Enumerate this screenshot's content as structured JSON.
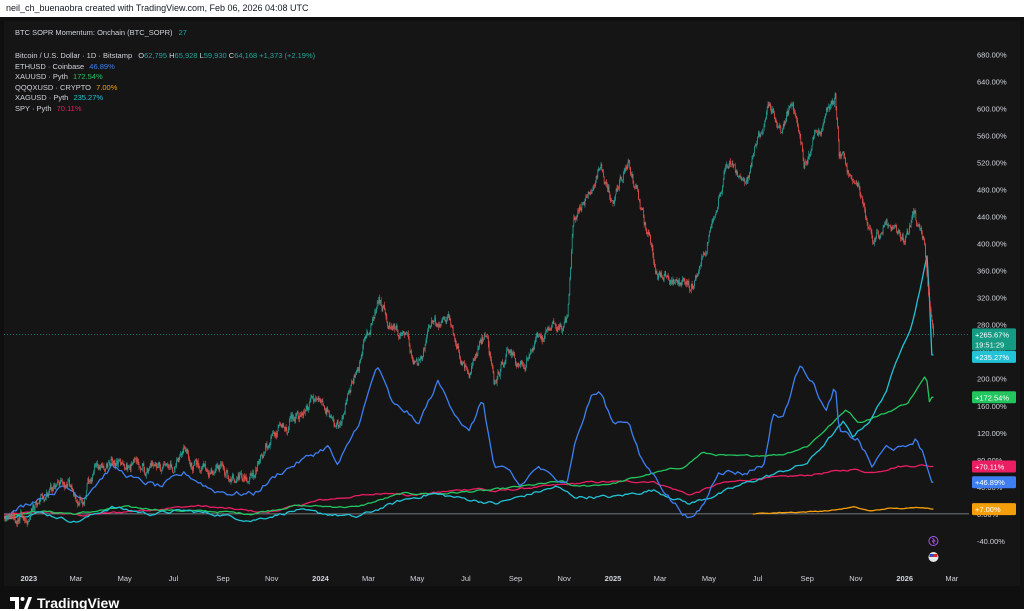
{
  "caption": "neil_ch_buenaobra created with TradingView.com, Feb 06, 2026 04:08 UTC",
  "indicator": {
    "name": "BTC SOPR Momentum: Onchain (BTC_SOPR)",
    "value": "27"
  },
  "main_symbol": {
    "name": "Bitcoin / U.S. Dollar · 1D · Bitstamp",
    "open_label": "O",
    "open": "62,795",
    "high_label": "H",
    "high": "65,928",
    "low_label": "L",
    "low": "59,930",
    "close_label": "C",
    "close": "64,168",
    "change": "+1,373 (+2.19%)"
  },
  "legend": [
    {
      "label": "ETHUSD · Coinbase",
      "value": "46.89%",
      "color": "#3d7ff2"
    },
    {
      "label": "XAUUSD · Pyth",
      "value": "172.54%",
      "color": "#22c55e"
    },
    {
      "label": "QQQXUSD · CRYPTO",
      "value": "7.00%",
      "color": "#f59e0b"
    },
    {
      "label": "XAGUSD · Pyth",
      "value": "235.27%",
      "color": "#22c3d6"
    },
    {
      "label": "SPY · Pyth",
      "value": "70.11%",
      "color": "#e91e63"
    }
  ],
  "brand": "TradingView",
  "chart_data": {
    "type": "line",
    "y_unit": "percent change",
    "ylim": [
      -55,
      700
    ],
    "y_ticks": [
      -40,
      0,
      40,
      80,
      120,
      160,
      200,
      240,
      280,
      320,
      360,
      400,
      440,
      480,
      520,
      560,
      600,
      640,
      680
    ],
    "y_tick_labels": [
      "-40.00%",
      "0.00%",
      "40.00%",
      "80.00%",
      "120.00%",
      "160.00%",
      "200.00%",
      "240.00%",
      "280.00%",
      "320.00%",
      "360.00%",
      "400.00%",
      "440.00%",
      "480.00%",
      "520.00%",
      "560.00%",
      "600.00%",
      "640.00%",
      "680.00%"
    ],
    "x_range": [
      "2022-12-01",
      "2026-03-20"
    ],
    "x_ticks": [
      {
        "date": "2023-01-01",
        "label": "2023",
        "bold": true
      },
      {
        "date": "2023-03-01",
        "label": "Mar"
      },
      {
        "date": "2023-05-01",
        "label": "May"
      },
      {
        "date": "2023-07-01",
        "label": "Jul"
      },
      {
        "date": "2023-09-01",
        "label": "Sep"
      },
      {
        "date": "2023-11-01",
        "label": "Nov"
      },
      {
        "date": "2024-01-01",
        "label": "2024",
        "bold": true
      },
      {
        "date": "2024-03-01",
        "label": "Mar"
      },
      {
        "date": "2024-05-01",
        "label": "May"
      },
      {
        "date": "2024-07-01",
        "label": "Jul"
      },
      {
        "date": "2024-09-01",
        "label": "Sep"
      },
      {
        "date": "2024-11-01",
        "label": "Nov"
      },
      {
        "date": "2025-01-01",
        "label": "2025",
        "bold": true
      },
      {
        "date": "2025-03-01",
        "label": "Mar"
      },
      {
        "date": "2025-05-01",
        "label": "May"
      },
      {
        "date": "2025-07-01",
        "label": "Jul"
      },
      {
        "date": "2025-09-01",
        "label": "Sep"
      },
      {
        "date": "2025-11-01",
        "label": "Nov"
      },
      {
        "date": "2026-01-01",
        "label": "2026",
        "bold": true
      },
      {
        "date": "2026-03-01",
        "label": "Mar"
      }
    ],
    "series": [
      {
        "name": "Bitcoin / U.S. Dollar",
        "style": "candles",
        "up_color": "#26a69a",
        "down_color": "#ef5350",
        "points": [
          [
            "2022-12-01",
            -4
          ],
          [
            "2022-12-25",
            -2
          ],
          [
            "2023-01-10",
            10
          ],
          [
            "2023-01-25",
            38
          ],
          [
            "2023-02-15",
            40
          ],
          [
            "2023-03-10",
            26
          ],
          [
            "2023-03-25",
            70
          ],
          [
            "2023-04-15",
            80
          ],
          [
            "2023-05-10",
            68
          ],
          [
            "2023-06-15",
            58
          ],
          [
            "2023-06-25",
            80
          ],
          [
            "2023-07-15",
            82
          ],
          [
            "2023-08-20",
            55
          ],
          [
            "2023-09-15",
            60
          ],
          [
            "2023-10-10",
            62
          ],
          [
            "2023-10-25",
            105
          ],
          [
            "2023-11-15",
            125
          ],
          [
            "2023-12-10",
            160
          ],
          [
            "2024-01-10",
            165
          ],
          [
            "2024-01-25",
            125
          ],
          [
            "2024-02-15",
            215
          ],
          [
            "2024-03-14",
            318
          ],
          [
            "2024-04-01",
            280
          ],
          [
            "2024-04-15",
            255
          ],
          [
            "2024-05-01",
            215
          ],
          [
            "2024-05-20",
            285
          ],
          [
            "2024-06-10",
            275
          ],
          [
            "2024-07-05",
            200
          ],
          [
            "2024-07-28",
            270
          ],
          [
            "2024-08-05",
            195
          ],
          [
            "2024-08-25",
            245
          ],
          [
            "2024-09-07",
            210
          ],
          [
            "2024-09-28",
            260
          ],
          [
            "2024-10-15",
            265
          ],
          [
            "2024-11-05",
            280
          ],
          [
            "2024-11-13",
            440
          ],
          [
            "2024-12-05",
            490
          ],
          [
            "2024-12-17",
            515
          ],
          [
            "2025-01-01",
            460
          ],
          [
            "2025-01-20",
            520
          ],
          [
            "2025-02-05",
            450
          ],
          [
            "2025-02-26",
            355
          ],
          [
            "2025-03-15",
            345
          ],
          [
            "2025-04-08",
            330
          ],
          [
            "2025-04-25",
            390
          ],
          [
            "2025-05-22",
            520
          ],
          [
            "2025-06-15",
            495
          ],
          [
            "2025-07-14",
            600
          ],
          [
            "2025-08-01",
            560
          ],
          [
            "2025-08-14",
            610
          ],
          [
            "2025-08-28",
            520
          ],
          [
            "2025-09-15",
            560
          ],
          [
            "2025-10-06",
            615
          ],
          [
            "2025-10-11",
            530
          ],
          [
            "2025-11-05",
            480
          ],
          [
            "2025-11-21",
            395
          ],
          [
            "2025-12-10",
            425
          ],
          [
            "2025-12-31",
            400
          ],
          [
            "2026-01-14",
            445
          ],
          [
            "2026-01-25",
            400
          ],
          [
            "2026-02-01",
            320
          ],
          [
            "2026-02-06",
            265.67
          ]
        ]
      },
      {
        "name": "ETHUSD",
        "color": "#3d7ff2",
        "points": [
          [
            "2022-12-01",
            -4
          ],
          [
            "2023-01-15",
            25
          ],
          [
            "2023-02-15",
            40
          ],
          [
            "2023-03-10",
            25
          ],
          [
            "2023-04-15",
            70
          ],
          [
            "2023-05-15",
            50
          ],
          [
            "2023-06-15",
            40
          ],
          [
            "2023-07-15",
            60
          ],
          [
            "2023-08-20",
            35
          ],
          [
            "2023-09-15",
            30
          ],
          [
            "2023-10-10",
            30
          ],
          [
            "2023-11-10",
            60
          ],
          [
            "2023-12-10",
            80
          ],
          [
            "2024-01-10",
            100
          ],
          [
            "2024-01-23",
            70
          ],
          [
            "2024-02-20",
            140
          ],
          [
            "2024-03-12",
            220
          ],
          [
            "2024-04-01",
            160
          ],
          [
            "2024-04-20",
            150
          ],
          [
            "2024-05-01",
            130
          ],
          [
            "2024-05-27",
            195
          ],
          [
            "2024-06-15",
            155
          ],
          [
            "2024-07-05",
            120
          ],
          [
            "2024-07-22",
            170
          ],
          [
            "2024-08-05",
            70
          ],
          [
            "2024-08-25",
            60
          ],
          [
            "2024-09-07",
            40
          ],
          [
            "2024-09-28",
            70
          ],
          [
            "2024-10-15",
            55
          ],
          [
            "2024-11-05",
            50
          ],
          [
            "2024-11-13",
            100
          ],
          [
            "2024-12-05",
            175
          ],
          [
            "2024-12-16",
            180
          ],
          [
            "2025-01-01",
            135
          ],
          [
            "2025-01-20",
            140
          ],
          [
            "2025-02-05",
            80
          ],
          [
            "2025-02-26",
            50
          ],
          [
            "2025-03-15",
            20
          ],
          [
            "2025-04-09",
            -10
          ],
          [
            "2025-04-25",
            15
          ],
          [
            "2025-05-13",
            65
          ],
          [
            "2025-06-15",
            60
          ],
          [
            "2025-07-10",
            75
          ],
          [
            "2025-07-20",
            150
          ],
          [
            "2025-08-01",
            140
          ],
          [
            "2025-08-24",
            225
          ],
          [
            "2025-09-10",
            190
          ],
          [
            "2025-09-25",
            150
          ],
          [
            "2025-10-06",
            190
          ],
          [
            "2025-10-11",
            120
          ],
          [
            "2025-11-04",
            110
          ],
          [
            "2025-11-21",
            70
          ],
          [
            "2025-12-10",
            100
          ],
          [
            "2025-12-31",
            95
          ],
          [
            "2026-01-14",
            110
          ],
          [
            "2026-01-25",
            90
          ],
          [
            "2026-02-01",
            55
          ],
          [
            "2026-02-06",
            46.89
          ]
        ]
      },
      {
        "name": "XAUUSD",
        "color": "#22c55e",
        "points": [
          [
            "2022-12-01",
            -3
          ],
          [
            "2023-01-15",
            4
          ],
          [
            "2023-03-01",
            0
          ],
          [
            "2023-05-01",
            10
          ],
          [
            "2023-07-01",
            5
          ],
          [
            "2023-09-01",
            3
          ],
          [
            "2023-10-06",
            0
          ],
          [
            "2023-12-01",
            12
          ],
          [
            "2024-02-15",
            10
          ],
          [
            "2024-04-12",
            30
          ],
          [
            "2024-06-01",
            30
          ],
          [
            "2024-08-01",
            35
          ],
          [
            "2024-10-30",
            48
          ],
          [
            "2024-11-15",
            40
          ],
          [
            "2025-01-01",
            45
          ],
          [
            "2025-02-20",
            60
          ],
          [
            "2025-04-01",
            70
          ],
          [
            "2025-04-22",
            90
          ],
          [
            "2025-06-01",
            85
          ],
          [
            "2025-08-01",
            88
          ],
          [
            "2025-09-01",
            100
          ],
          [
            "2025-10-08",
            140
          ],
          [
            "2025-10-20",
            155
          ],
          [
            "2025-11-05",
            135
          ],
          [
            "2025-12-10",
            150
          ],
          [
            "2026-01-05",
            165
          ],
          [
            "2026-01-28",
            205
          ],
          [
            "2026-02-01",
            165
          ],
          [
            "2026-02-06",
            172.54
          ]
        ]
      },
      {
        "name": "QQQXUSD",
        "color": "#f59e0b",
        "points": [
          [
            "2025-06-25",
            0
          ],
          [
            "2025-08-01",
            2
          ],
          [
            "2025-09-01",
            3
          ],
          [
            "2025-10-01",
            5
          ],
          [
            "2025-10-29",
            10
          ],
          [
            "2025-11-20",
            4
          ],
          [
            "2025-12-10",
            8
          ],
          [
            "2026-01-05",
            8
          ],
          [
            "2026-01-25",
            10
          ],
          [
            "2026-02-06",
            7.0
          ]
        ]
      },
      {
        "name": "XAGUSD",
        "color": "#22c3d6",
        "points": [
          [
            "2022-12-01",
            -5
          ],
          [
            "2023-01-15",
            2
          ],
          [
            "2023-03-01",
            -12
          ],
          [
            "2023-04-15",
            10
          ],
          [
            "2023-06-01",
            0
          ],
          [
            "2023-07-15",
            5
          ],
          [
            "2023-09-01",
            -2
          ],
          [
            "2023-10-06",
            -10
          ],
          [
            "2023-12-01",
            5
          ],
          [
            "2024-02-15",
            -5
          ],
          [
            "2024-04-12",
            20
          ],
          [
            "2024-05-20",
            30
          ],
          [
            "2024-07-01",
            22
          ],
          [
            "2024-08-07",
            15
          ],
          [
            "2024-10-22",
            40
          ],
          [
            "2024-11-15",
            25
          ],
          [
            "2025-01-01",
            25
          ],
          [
            "2025-02-20",
            35
          ],
          [
            "2025-04-07",
            15
          ],
          [
            "2025-05-15",
            30
          ],
          [
            "2025-06-15",
            45
          ],
          [
            "2025-07-25",
            60
          ],
          [
            "2025-09-01",
            75
          ],
          [
            "2025-10-16",
            135
          ],
          [
            "2025-10-28",
            115
          ],
          [
            "2025-11-20",
            140
          ],
          [
            "2025-12-10",
            185
          ],
          [
            "2025-12-29",
            250
          ],
          [
            "2026-01-10",
            280
          ],
          [
            "2026-01-29",
            380
          ],
          [
            "2026-02-02",
            300
          ],
          [
            "2026-02-06",
            235.27
          ]
        ]
      },
      {
        "name": "SPY",
        "color": "#e91e63",
        "points": [
          [
            "2022-12-01",
            -2
          ],
          [
            "2023-01-15",
            3
          ],
          [
            "2023-03-10",
            -2
          ],
          [
            "2023-05-01",
            3
          ],
          [
            "2023-07-31",
            12
          ],
          [
            "2023-10-27",
            2
          ],
          [
            "2023-12-31",
            20
          ],
          [
            "2024-03-31",
            32
          ],
          [
            "2024-04-19",
            27
          ],
          [
            "2024-07-16",
            38
          ],
          [
            "2024-08-05",
            33
          ],
          [
            "2024-10-01",
            40
          ],
          [
            "2024-12-06",
            47
          ],
          [
            "2025-02-19",
            48
          ],
          [
            "2025-04-08",
            28
          ],
          [
            "2025-05-15",
            45
          ],
          [
            "2025-06-30",
            52
          ],
          [
            "2025-08-30",
            57
          ],
          [
            "2025-10-28",
            66
          ],
          [
            "2025-11-20",
            61
          ],
          [
            "2025-12-24",
            70
          ],
          [
            "2026-01-25",
            72
          ],
          [
            "2026-02-06",
            70.11
          ]
        ]
      }
    ],
    "price_tags": [
      {
        "value": 265.67,
        "lines": [
          "+265.67%",
          "19:51:29"
        ],
        "bg": "#159a83"
      },
      {
        "value": 235.27,
        "lines": [
          "+235.27%"
        ],
        "bg": "#22c3d6"
      },
      {
        "value": 172.54,
        "lines": [
          "+172.54%"
        ],
        "bg": "#22c55e"
      },
      {
        "value": 70.11,
        "lines": [
          "+70.11%"
        ],
        "bg": "#e91e63"
      },
      {
        "value": 46.89,
        "lines": [
          "+46.89%"
        ],
        "bg": "#3d7ff2"
      },
      {
        "value": 7.0,
        "lines": [
          "+7.00%"
        ],
        "bg": "#f59e0b"
      }
    ],
    "close_line_value": 265.67,
    "zero_line": 0,
    "grid": false,
    "scale_side": "right"
  }
}
